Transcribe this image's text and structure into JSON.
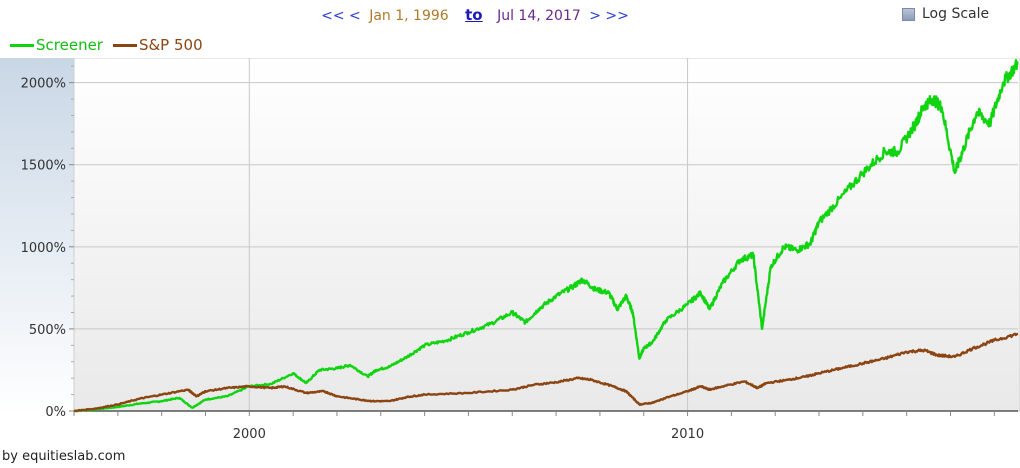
{
  "nav": {
    "back_fast": "<<",
    "back": "<",
    "start_date": "Jan 1, 1996",
    "to_label": "to",
    "end_date": "Jul 14, 2017",
    "forward": ">",
    "forward_fast": ">>"
  },
  "log_scale": {
    "label": "Log Scale",
    "checked": false
  },
  "credit": "by equitieslab.com",
  "colors": {
    "screener": "#11d411",
    "sp500": "#8b4513"
  },
  "chart_data": {
    "type": "line",
    "title": "",
    "xlabel": "",
    "ylabel": "",
    "xlim": [
      1996.0,
      2017.54
    ],
    "ylim": [
      0,
      2150
    ],
    "x_ticks": [
      2000,
      2010
    ],
    "x_tick_labels": [
      "2000",
      "2010"
    ],
    "y_ticks": [
      0,
      500,
      1000,
      1500,
      2000
    ],
    "y_tick_labels": [
      "0%",
      "500%",
      "1000%",
      "1500%",
      "2000%"
    ],
    "grid": true,
    "legend_position": "top-left",
    "series": [
      {
        "name": "Screener",
        "color": "#11d411",
        "x": [
          1996.0,
          1996.5,
          1997.0,
          1997.5,
          1998.0,
          1998.4,
          1998.7,
          1999.0,
          1999.5,
          2000.0,
          2000.5,
          2001.0,
          2001.3,
          2001.6,
          2002.0,
          2002.3,
          2002.7,
          2002.9,
          2003.2,
          2003.6,
          2004.0,
          2004.5,
          2005.0,
          2005.5,
          2006.0,
          2006.3,
          2006.6,
          2007.0,
          2007.4,
          2007.6,
          2007.9,
          2008.2,
          2008.4,
          2008.6,
          2008.75,
          2008.9,
          2009.0,
          2009.2,
          2009.5,
          2010.0,
          2010.3,
          2010.5,
          2010.8,
          2011.2,
          2011.5,
          2011.7,
          2011.9,
          2012.2,
          2012.5,
          2012.8,
          2013.0,
          2013.5,
          2014.0,
          2014.5,
          2014.8,
          2015.2,
          2015.4,
          2015.6,
          2015.8,
          2016.1,
          2016.3,
          2016.6,
          2016.9,
          2017.2,
          2017.54
        ],
        "values": [
          0,
          10,
          25,
          45,
          60,
          80,
          20,
          70,
          90,
          150,
          165,
          230,
          170,
          250,
          260,
          280,
          210,
          250,
          270,
          330,
          400,
          430,
          480,
          530,
          600,
          540,
          620,
          700,
          760,
          800,
          740,
          720,
          620,
          700,
          600,
          320,
          380,
          420,
          550,
          650,
          720,
          620,
          780,
          920,
          950,
          500,
          880,
          1000,
          980,
          1020,
          1150,
          1300,
          1450,
          1580,
          1580,
          1750,
          1860,
          1900,
          1850,
          1450,
          1600,
          1820,
          1750,
          2000,
          2120
        ]
      },
      {
        "name": "S&P 500",
        "color": "#8b4513",
        "x": [
          1996.0,
          1996.5,
          1997.0,
          1997.5,
          1998.0,
          1998.6,
          1998.8,
          1999.0,
          1999.5,
          2000.0,
          2000.5,
          2000.8,
          2001.3,
          2001.7,
          2002.0,
          2002.5,
          2002.8,
          2003.2,
          2003.6,
          2004.0,
          2005.0,
          2006.0,
          2006.5,
          2007.0,
          2007.5,
          2007.8,
          2008.3,
          2008.6,
          2008.9,
          2009.2,
          2009.5,
          2010.0,
          2010.3,
          2010.5,
          2010.8,
          2011.3,
          2011.6,
          2011.8,
          2012.3,
          2012.7,
          2013.0,
          2013.5,
          2014.0,
          2014.5,
          2015.0,
          2015.4,
          2015.7,
          2016.1,
          2016.5,
          2017.0,
          2017.54
        ],
        "values": [
          0,
          15,
          40,
          75,
          100,
          130,
          90,
          120,
          140,
          150,
          140,
          150,
          110,
          120,
          90,
          70,
          60,
          60,
          85,
          100,
          110,
          130,
          160,
          175,
          200,
          190,
          150,
          120,
          40,
          50,
          80,
          120,
          150,
          130,
          150,
          180,
          140,
          170,
          190,
          210,
          230,
          260,
          290,
          320,
          360,
          370,
          340,
          330,
          380,
          430,
          470
        ]
      }
    ]
  }
}
